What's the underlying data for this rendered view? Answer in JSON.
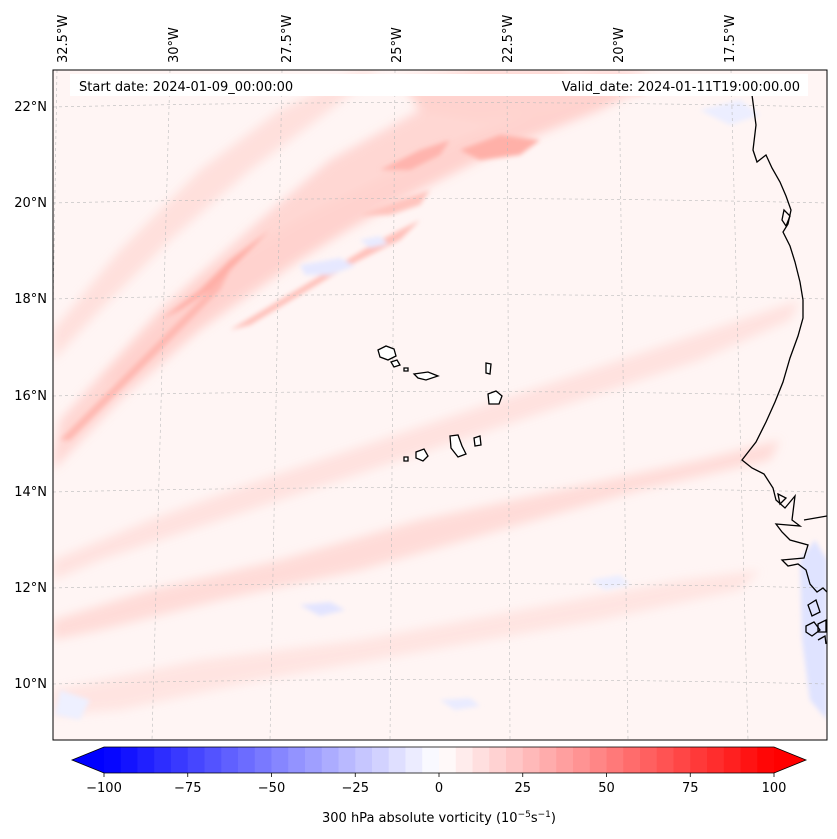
{
  "map": {
    "start_date": "Start date: 2024-01-09_00:00:00",
    "valid_date": "Valid_date: 2024-01-11T19:00:00.00",
    "lon_labels": [
      "32.5°W",
      "30°W",
      "27.5°W",
      "25°W",
      "22.5°W",
      "20°W",
      "17.5°W"
    ],
    "lat_labels": [
      "22°N",
      "20°N",
      "18°N",
      "16°N",
      "14°N",
      "12°N",
      "10°N"
    ],
    "variable": "300 hPa absolute vorticity",
    "units_text": "(10",
    "units_exp1": "−5",
    "units_mid": "s",
    "units_exp2": "−1",
    "units_close": ")",
    "colors": {
      "neg_max": "#0000ff",
      "pos_max": "#ff0000",
      "neutral": "#ffffff",
      "coast": "#000000",
      "grid": "#bbbbbb"
    }
  },
  "colorbar": {
    "ticks": [
      -100,
      -75,
      -50,
      -25,
      0,
      25,
      50,
      75,
      100
    ],
    "tick_labels": [
      "−100",
      "−75",
      "−50",
      "−25",
      "0",
      "25",
      "50",
      "75",
      "100"
    ],
    "range": [
      -100,
      100
    ],
    "levels": 40
  }
}
